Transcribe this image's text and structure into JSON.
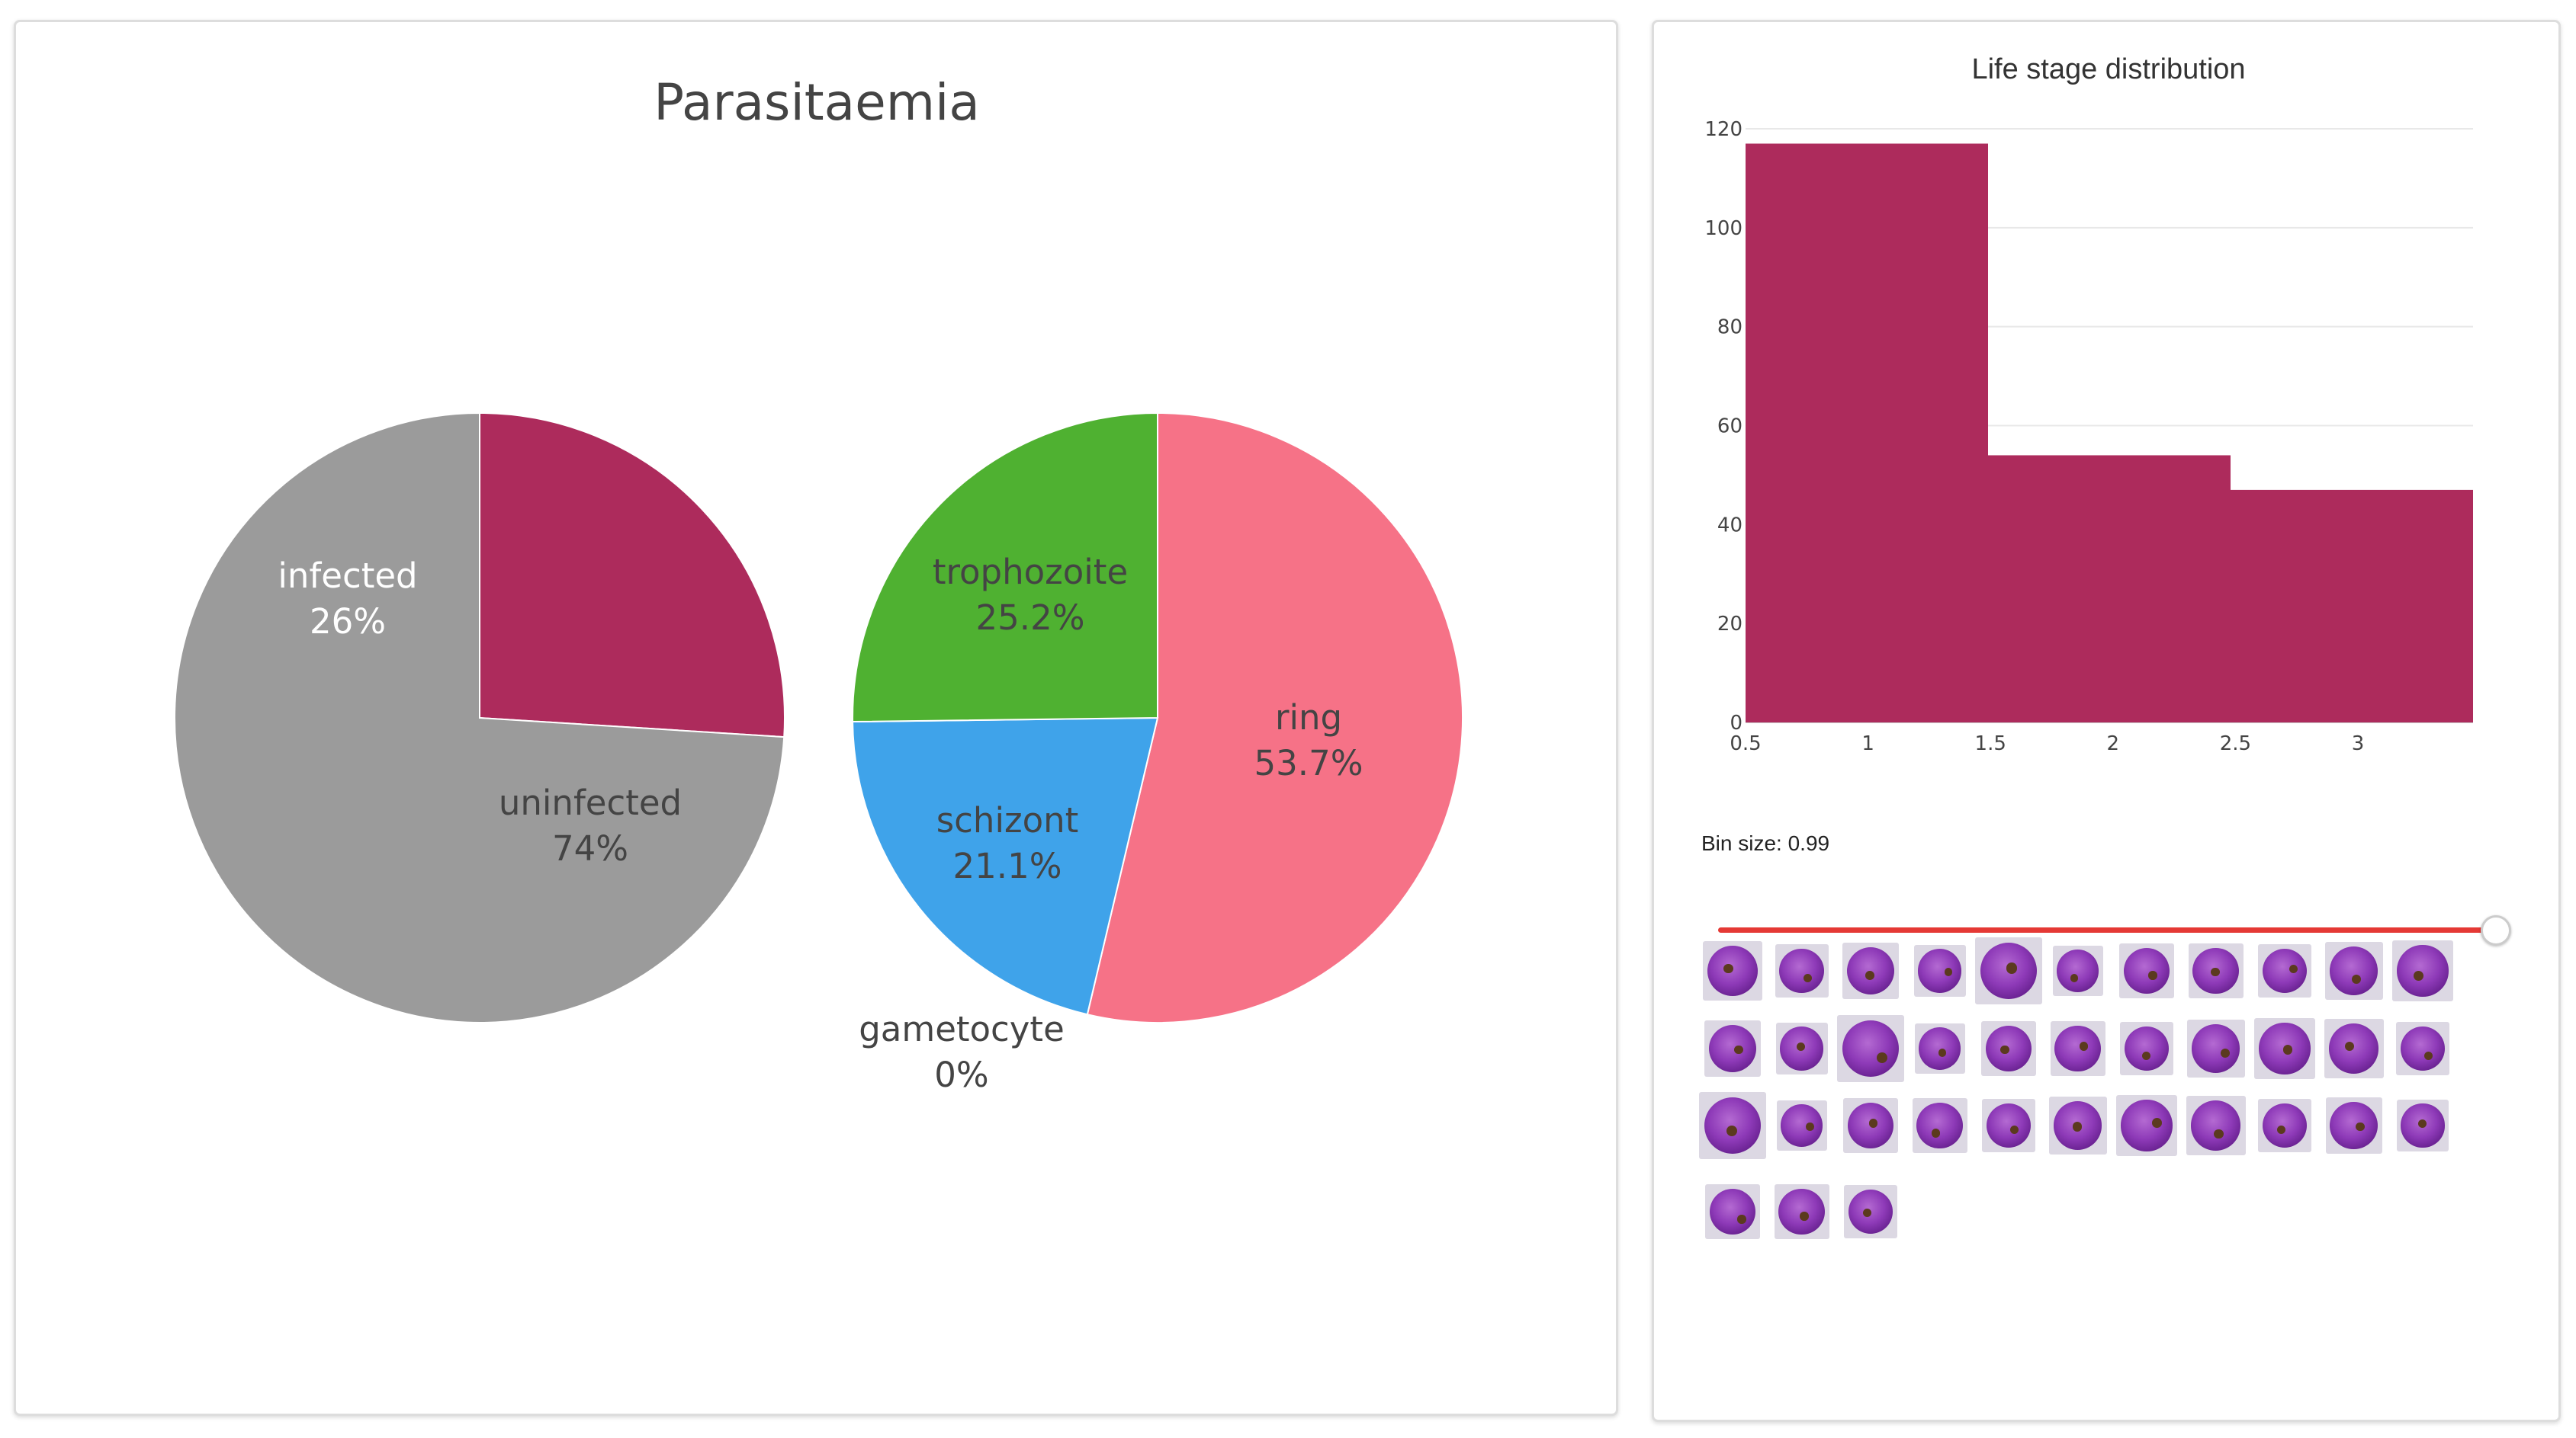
{
  "left_panel": {
    "title": "Parasitaemia"
  },
  "right_panel": {
    "title": "Life stage distribution",
    "slider_label": "Bin size: 0.99",
    "slider_fraction": 0.99,
    "thumbnail_count": 36
  },
  "chart_data": [
    {
      "type": "pie",
      "title": "Parasitaemia",
      "slices": [
        {
          "label": "infected",
          "value": 26,
          "text": "26%",
          "color": "#ad2b5c",
          "text_color": "#ffffff"
        },
        {
          "label": "uninfected",
          "value": 74,
          "text": "74%",
          "color": "#9b9b9b",
          "text_color": "#444444"
        }
      ]
    },
    {
      "type": "pie",
      "slices": [
        {
          "label": "ring",
          "value": 53.7,
          "text": "53.7%",
          "color": "#f67287",
          "text_color": "#444444"
        },
        {
          "label": "gametocyte",
          "value": 0,
          "text": "0%",
          "color": "#ff9f40",
          "text_color": "#444444"
        },
        {
          "label": "schizont",
          "value": 21.1,
          "text": "21.1%",
          "color": "#3fa3ea",
          "text_color": "#444444"
        },
        {
          "label": "trophozoite",
          "value": 25.2,
          "text": "25.2%",
          "color": "#4fb131",
          "text_color": "#444444"
        }
      ]
    },
    {
      "type": "bar",
      "title": "Life stage distribution",
      "bins": [
        {
          "start": 0.5,
          "end": 1.49,
          "value": 117
        },
        {
          "start": 1.49,
          "end": 2.48,
          "value": 54
        },
        {
          "start": 2.48,
          "end": 3.47,
          "value": 47
        }
      ],
      "xlim": [
        0.5,
        3.47
      ],
      "ylim": [
        0,
        120
      ],
      "xticks": [
        0.5,
        1,
        1.5,
        2,
        2.5,
        3
      ],
      "xtick_labels": [
        "0.5",
        "1",
        "1.5",
        "2",
        "2.5",
        "3"
      ],
      "yticks": [
        0,
        20,
        40,
        60,
        80,
        100,
        120
      ],
      "ytick_labels": [
        "0",
        "20",
        "40",
        "60",
        "80",
        "100",
        "120"
      ],
      "color": "#ad2b5c",
      "grid": true
    }
  ]
}
